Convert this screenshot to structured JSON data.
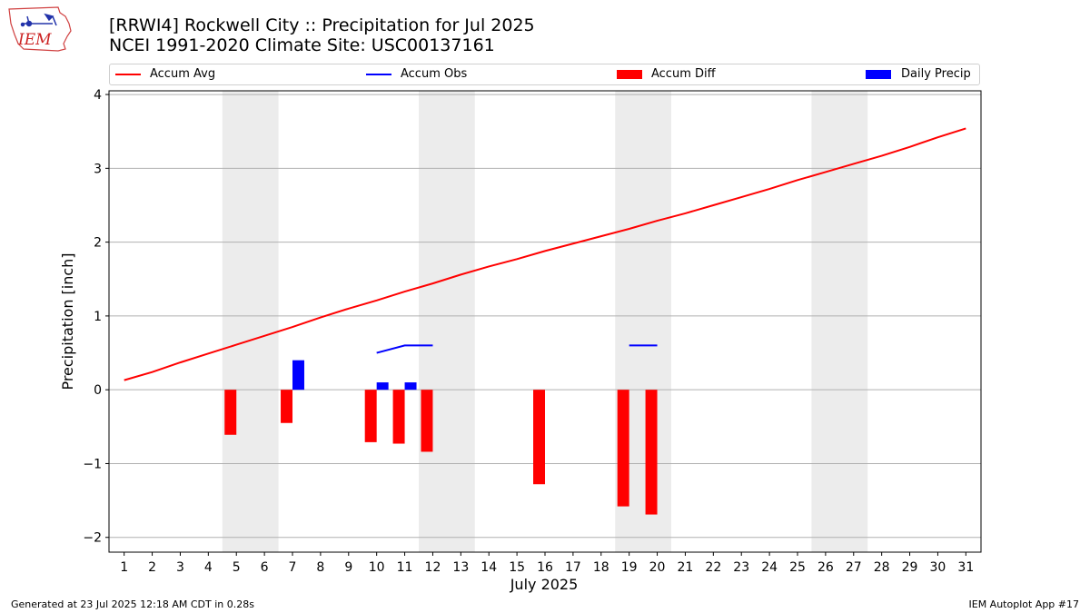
{
  "header": {
    "title_line1": "[RRWI4] Rockwell City :: Precipitation for Jul 2025",
    "title_line2": "NCEI 1991-2020 Climate Site: USC00137161"
  },
  "logo": {
    "text": "IEM"
  },
  "legend": {
    "items": [
      {
        "label": "Accum Avg",
        "kind": "line",
        "color": "#ff0000"
      },
      {
        "label": "Accum Obs",
        "kind": "line",
        "color": "#0000ff"
      },
      {
        "label": "Accum Diff",
        "kind": "bar",
        "color": "#ff0000"
      },
      {
        "label": "Daily Precip",
        "kind": "bar",
        "color": "#0000ff"
      }
    ]
  },
  "chart_data": {
    "type": "bar+line",
    "xlabel": "July 2025",
    "ylabel": "Precipitation [inch]",
    "x_days": [
      1,
      2,
      3,
      4,
      5,
      6,
      7,
      8,
      9,
      10,
      11,
      12,
      13,
      14,
      15,
      16,
      17,
      18,
      19,
      20,
      21,
      22,
      23,
      24,
      25,
      26,
      27,
      28,
      29,
      30,
      31
    ],
    "ylim": [
      -2.2,
      4.05
    ],
    "yticks": [
      -2,
      -1,
      0,
      1,
      2,
      3,
      4
    ],
    "ytick_labels": [
      "−2",
      "−1",
      "0",
      "1",
      "2",
      "3",
      "4"
    ],
    "weekend_shading": [
      [
        4.5,
        6.5
      ],
      [
        11.5,
        13.5
      ],
      [
        18.5,
        20.5
      ],
      [
        25.5,
        27.5
      ]
    ],
    "grid": "horizontal",
    "series": [
      {
        "name": "Accum Avg",
        "type": "line",
        "color": "#ff0000",
        "x": [
          1,
          2,
          3,
          4,
          5,
          6,
          7,
          8,
          9,
          10,
          11,
          12,
          13,
          14,
          15,
          16,
          17,
          18,
          19,
          20,
          21,
          22,
          23,
          24,
          25,
          26,
          27,
          28,
          29,
          30,
          31
        ],
        "values": [
          0.13,
          0.24,
          0.37,
          0.49,
          0.61,
          0.73,
          0.85,
          0.98,
          1.1,
          1.21,
          1.33,
          1.44,
          1.56,
          1.67,
          1.77,
          1.88,
          1.98,
          2.08,
          2.18,
          2.29,
          2.39,
          2.5,
          2.61,
          2.72,
          2.84,
          2.95,
          3.06,
          3.17,
          3.29,
          3.42,
          3.54
        ]
      },
      {
        "name": "Accum Obs",
        "type": "line",
        "color": "#0000ff",
        "segments": [
          {
            "x": [
              10,
              11,
              12
            ],
            "values": [
              0.5,
              0.6,
              0.6
            ]
          },
          {
            "x": [
              19,
              20
            ],
            "values": [
              0.6,
              0.6
            ]
          }
        ]
      },
      {
        "name": "Accum Diff",
        "type": "bar",
        "color": "#ff0000",
        "x": [
          5,
          7,
          10,
          11,
          12,
          16,
          19,
          20
        ],
        "values": [
          -0.61,
          -0.45,
          -0.71,
          -0.73,
          -0.84,
          -1.28,
          -1.58,
          -1.69
        ]
      },
      {
        "name": "Daily Precip",
        "type": "bar",
        "color": "#0000ff",
        "x": [
          7,
          10,
          11
        ],
        "values": [
          0.4,
          0.1,
          0.1
        ]
      }
    ]
  },
  "footer": {
    "left": "Generated at 23 Jul 2025 12:18 AM CDT in 0.28s",
    "right": "IEM Autoplot App #17"
  }
}
